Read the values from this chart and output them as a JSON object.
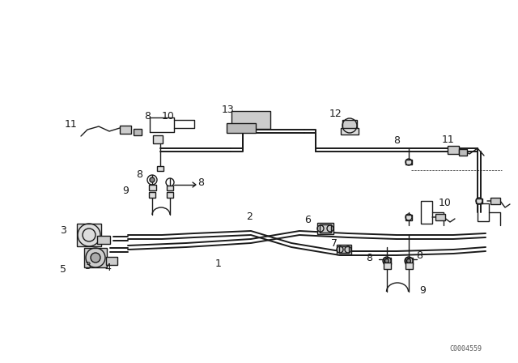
{
  "bg_color": "#ffffff",
  "line_color": "#1a1a1a",
  "fig_width": 6.4,
  "fig_height": 4.48,
  "dpi": 100,
  "watermark": "C0004559"
}
